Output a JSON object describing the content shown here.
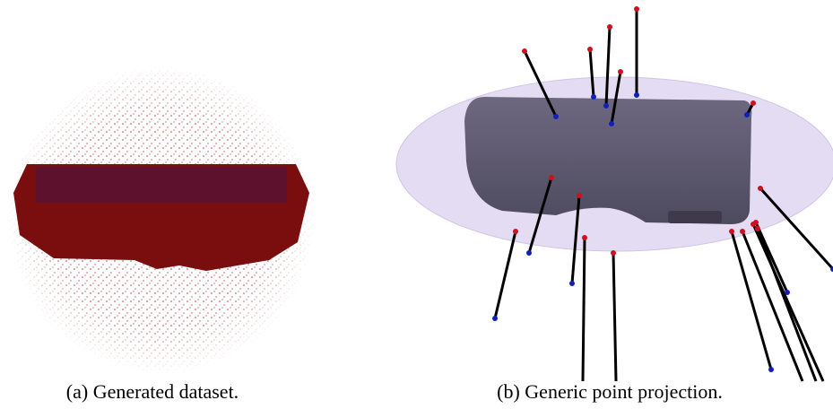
{
  "figure": {
    "panels": [
      {
        "caption": "(a) Generated dataset."
      },
      {
        "caption": "(b) Generic point projection."
      }
    ]
  }
}
